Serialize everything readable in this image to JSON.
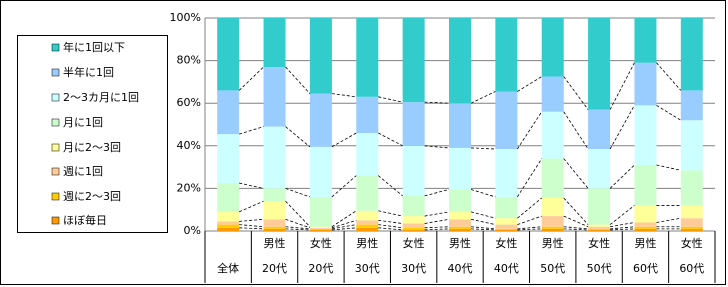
{
  "chart_data": {
    "type": "stacked_bar_100",
    "categories": [
      [
        "全体"
      ],
      [
        "男性",
        "20代"
      ],
      [
        "女性",
        "20代"
      ],
      [
        "男性",
        "30代"
      ],
      [
        "女性",
        "30代"
      ],
      [
        "男性",
        "40代"
      ],
      [
        "女性",
        "40代"
      ],
      [
        "男性",
        "50代"
      ],
      [
        "女性",
        "50代"
      ],
      [
        "男性",
        "60代"
      ],
      [
        "女性",
        "60代"
      ]
    ],
    "series": [
      {
        "name": "ほぼ毎日",
        "color": "#ff9900",
        "values": [
          1.5,
          1,
          0.5,
          1.5,
          0.5,
          1,
          0.5,
          1,
          0.5,
          1,
          1
        ]
      },
      {
        "name": "週に2〜3回",
        "color": "#ffcc00",
        "values": [
          1.5,
          1,
          0.5,
          1.5,
          1,
          1,
          0.5,
          1,
          0.5,
          1,
          1
        ]
      },
      {
        "name": "週に1回",
        "color": "#ffcc99",
        "values": [
          1.5,
          3.5,
          0.5,
          2,
          2,
          3.5,
          2,
          5,
          1,
          2,
          4
        ]
      },
      {
        "name": "月に2〜3回",
        "color": "#ffff99",
        "values": [
          4.5,
          8.5,
          0.5,
          4.5,
          3.5,
          3.5,
          3,
          8.5,
          1,
          8,
          6
        ]
      },
      {
        "name": "月に1回",
        "color": "#ccffcc",
        "values": [
          13.5,
          6,
          14,
          16.5,
          9.5,
          10.5,
          10,
          18.5,
          17,
          19,
          16.5
        ]
      },
      {
        "name": "2〜3カ月に1回",
        "color": "#ccffff",
        "values": [
          23,
          29,
          23.5,
          20,
          23.5,
          19.5,
          22.5,
          22,
          18.5,
          28,
          23.5
        ]
      },
      {
        "name": "半年に1回",
        "color": "#99ccff",
        "values": [
          20.5,
          28,
          25,
          17,
          20.5,
          21,
          27,
          16.5,
          18.5,
          20,
          14
        ]
      },
      {
        "name": "年に1回以下",
        "color": "#33cccc",
        "values": [
          34,
          23,
          35.5,
          37,
          39.5,
          40,
          34.5,
          27.5,
          43,
          21,
          34
        ]
      }
    ],
    "ylim": [
      0,
      100
    ],
    "yticks": [
      {
        "value": 0,
        "label": "0%"
      },
      {
        "value": 20,
        "label": "20%"
      },
      {
        "value": 40,
        "label": "40%"
      },
      {
        "value": 60,
        "label": "60%"
      },
      {
        "value": 80,
        "label": "80%"
      },
      {
        "value": 100,
        "label": "100%"
      }
    ],
    "grid": true,
    "legend": "left"
  }
}
